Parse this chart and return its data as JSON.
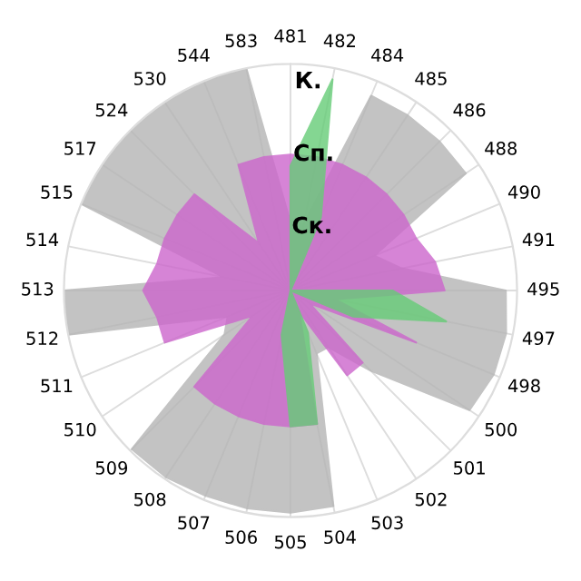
{
  "chart_data": {
    "type": "radar",
    "categories": [
      "481",
      "482",
      "484",
      "485",
      "486",
      "488",
      "490",
      "491",
      "495",
      "497",
      "498",
      "500",
      "501",
      "502",
      "503",
      "504",
      "505",
      "506",
      "507",
      "508",
      "509",
      "510",
      "511",
      "512",
      "513",
      "514",
      "515",
      "517",
      "524",
      "530",
      "544",
      "583"
    ],
    "series": [
      {
        "color": "#b4b4b4",
        "values": [
          0.3,
          0.3,
          0.93,
          0.93,
          0.93,
          0.93,
          0.4,
          0.5,
          0.95,
          0.97,
          0.97,
          0.95,
          0.5,
          0.3,
          0.3,
          0.97,
          0.98,
          0.98,
          0.98,
          0.99,
          0.99,
          0.35,
          0.3,
          1.0,
          1.0,
          0.3,
          1.0,
          1.0,
          1.0,
          1.0,
          1.0,
          1.0
        ]
      },
      {
        "color": "#cc66cc",
        "values": [
          0.6,
          0.6,
          0.6,
          0.6,
          0.6,
          0.6,
          0.6,
          0.65,
          0.68,
          0.2,
          0.6,
          0.1,
          0.45,
          0.45,
          0.1,
          0.6,
          0.6,
          0.6,
          0.6,
          0.6,
          0.6,
          0.2,
          0.6,
          0.6,
          0.65,
          0.6,
          0.6,
          0.6,
          0.6,
          0.25,
          0.6,
          0.6
        ]
      },
      {
        "color": "#66cc77",
        "values": [
          0.55,
          0.95,
          0.35,
          null,
          null,
          null,
          null,
          null,
          0.45,
          0.7,
          0.3,
          null,
          null,
          null,
          0.2,
          0.6,
          0.6,
          0.2,
          null,
          null,
          null,
          null,
          null,
          null,
          null,
          null,
          null,
          null,
          null,
          null,
          null,
          null
        ]
      }
    ],
    "ylim": [
      0,
      1
    ],
    "yticks": [
      {
        "value": 0.28,
        "label": "Ск."
      },
      {
        "value": 0.6,
        "label": "Сп."
      },
      {
        "value": 0.92,
        "label": "К."
      }
    ],
    "grid": "x"
  }
}
